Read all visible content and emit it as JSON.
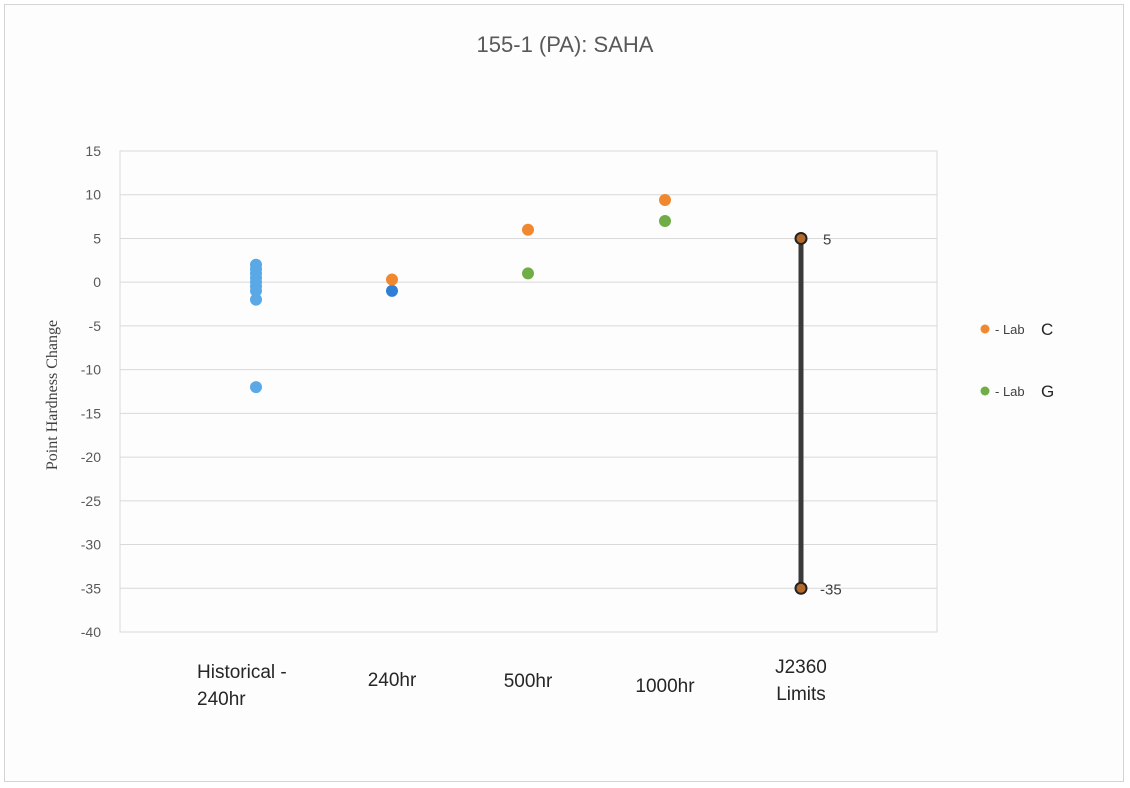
{
  "chart_data": {
    "type": "scatter",
    "title": "155-1 (PA): SAHA",
    "xlabel": "",
    "ylabel": "Point Hardness Change",
    "ylim": [
      -40,
      15
    ],
    "yticks": [
      15,
      10,
      5,
      0,
      -5,
      -10,
      -15,
      -20,
      -25,
      -30,
      -35,
      -40
    ],
    "grid": true,
    "legend_position": "right",
    "categories": [
      [
        "Historical -",
        "240hr"
      ],
      [
        "240hr"
      ],
      [
        "500hr"
      ],
      [
        "1000hr"
      ],
      [
        "J2360",
        "Limits"
      ]
    ],
    "series": [
      {
        "name": "",
        "color": "#5aa9e6",
        "points": [
          {
            "x": 0,
            "y": 2
          },
          {
            "x": 0,
            "y": 1.5
          },
          {
            "x": 0,
            "y": 1
          },
          {
            "x": 0,
            "y": 0.5
          },
          {
            "x": 0,
            "y": 0
          },
          {
            "x": 0,
            "y": -0.5
          },
          {
            "x": 0,
            "y": -1
          },
          {
            "x": 0,
            "y": -2
          },
          {
            "x": 0,
            "y": -12
          }
        ]
      },
      {
        "name": "",
        "color": "#2f7fd6",
        "points": [
          {
            "x": 1,
            "y": -1
          }
        ]
      },
      {
        "name": "Lab C",
        "color": "#f0882f",
        "points": [
          {
            "x": 1,
            "y": 0.3
          },
          {
            "x": 2,
            "y": 6
          },
          {
            "x": 3,
            "y": 9.4
          }
        ]
      },
      {
        "name": "Lab G",
        "color": "#70ad47",
        "points": [
          {
            "x": 2,
            "y": 1
          },
          {
            "x": 3,
            "y": 7
          }
        ]
      }
    ],
    "limits": {
      "x": 4,
      "upper": 5,
      "lower": -35,
      "upper_label": "5",
      "lower_label": "-35",
      "line_color": "#3a3a3a",
      "marker_color": "#b36a2a"
    },
    "legend": [
      {
        "prefix": "- Lab",
        "letter": "C",
        "color": "#f0882f"
      },
      {
        "prefix": "- Lab",
        "letter": "G",
        "color": "#70ad47"
      }
    ]
  }
}
